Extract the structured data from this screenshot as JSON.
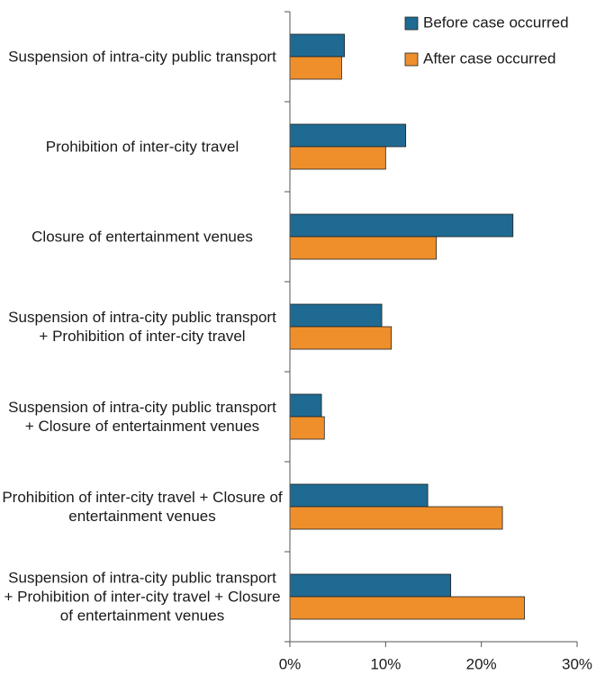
{
  "chart_data": {
    "type": "barh",
    "categories": [
      "Suspension of intra-city public transport",
      "Prohibition of inter-city travel",
      "Closure of entertainment venues",
      "Suspension of intra-city public transport + Prohibition of inter-city travel",
      "Suspension of intra-city public transport + Closure of entertainment venues",
      "Prohibition of inter-city travel + Closure of entertainment venues",
      "Suspension of intra-city public transport + Prohibition of inter-city travel + Closure of entertainment venues"
    ],
    "series": [
      {
        "name": "Before case occurred",
        "color": "#1e6a92",
        "values": [
          5.7,
          12.1,
          23.3,
          9.6,
          3.3,
          14.4,
          16.8
        ]
      },
      {
        "name": "After case occurred",
        "color": "#ee8f2c",
        "values": [
          5.4,
          10.0,
          15.3,
          10.6,
          3.6,
          22.2,
          24.5
        ]
      }
    ],
    "xlim": [
      0,
      30
    ],
    "xticks": [
      {
        "value": 0,
        "label": "0%"
      },
      {
        "value": 10,
        "label": "10%"
      },
      {
        "value": 20,
        "label": "20%"
      },
      {
        "value": 30,
        "label": "30%"
      }
    ],
    "legend": "upper right"
  }
}
